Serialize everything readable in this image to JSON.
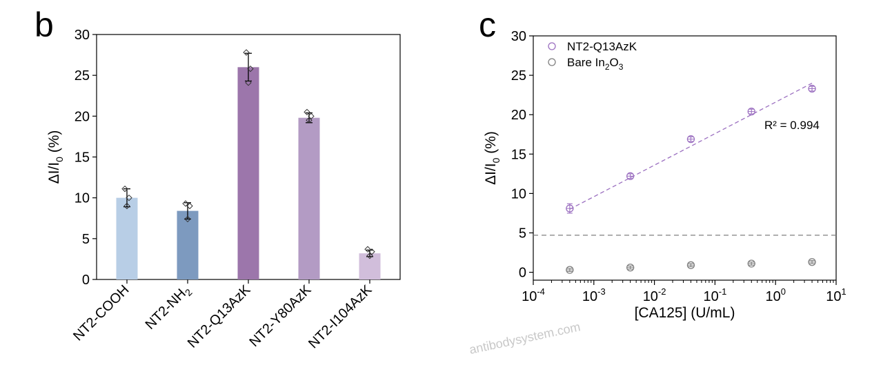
{
  "panel_b": {
    "letter": "b"
  },
  "panel_c": {
    "letter": "c"
  },
  "watermark": "antibodysystem.com",
  "chart_data": [
    {
      "type": "bar",
      "ylabel": "ΔI/I₀ (%)",
      "ylim": [
        0,
        30
      ],
      "yticks": [
        0,
        5,
        10,
        15,
        20,
        25,
        30
      ],
      "categories": [
        "NT2-COOH",
        "NT2-NH2",
        "NT2-Q13AzK",
        "NT2-Y80AzK",
        "NT2-I104AzK"
      ],
      "category_subscripts": [
        "",
        "2",
        "",
        "",
        ""
      ],
      "values": [
        10.0,
        8.4,
        26.0,
        19.8,
        3.2
      ],
      "errors": [
        1.1,
        1.0,
        1.7,
        0.6,
        0.4
      ],
      "replicate_points": [
        [
          11.1,
          10.0,
          9.0
        ],
        [
          9.3,
          9.0,
          7.4
        ],
        [
          27.8,
          25.8,
          24.1
        ],
        [
          20.5,
          20.0,
          19.5
        ],
        [
          3.7,
          3.4,
          2.9
        ]
      ],
      "colors": [
        "#b8cee6",
        "#7d9abf",
        "#9c76ab",
        "#b39bc4",
        "#d1bedb"
      ],
      "grid": false
    },
    {
      "type": "scatter",
      "xlabel": "[CA125] (U/mL)",
      "ylabel": "ΔI/I₀ (%)",
      "xscale": "log",
      "xlim": [
        0.0001,
        10
      ],
      "ylim": [
        -1,
        30
      ],
      "yticks": [
        0,
        5,
        10,
        15,
        20,
        25,
        30
      ],
      "xtick_exponents": [
        "-4",
        "-3",
        "-2",
        "-1",
        "0",
        "1"
      ],
      "legend_position": "top-left",
      "series": [
        {
          "name": "NT2-Q13AzK",
          "color": "#9b6fc0",
          "x": [
            0.0004,
            0.004,
            0.04,
            0.4,
            4
          ],
          "y": [
            8.1,
            12.2,
            16.9,
            20.4,
            23.3
          ],
          "errors": [
            0.6,
            0.3,
            0.3,
            0.3,
            0.3
          ]
        },
        {
          "name": "Bare In2O3",
          "name_parts": [
            "Bare In",
            "2",
            "O",
            "3"
          ],
          "color": "#7f7f7f",
          "x": [
            0.0004,
            0.004,
            0.04,
            0.4,
            4
          ],
          "y": [
            0.3,
            0.6,
            0.9,
            1.1,
            1.3
          ],
          "errors": [
            0.2,
            0.2,
            0.2,
            0.2,
            0.2
          ]
        }
      ],
      "fit_line": {
        "x": [
          0.0004,
          4
        ],
        "y": [
          8.0,
          24.0
        ],
        "color": "#9b6fc0",
        "style": "dashed"
      },
      "threshold_line": {
        "y": 4.7,
        "color": "#7f7f7f",
        "style": "dashed"
      },
      "annotation": "R² = 0.994",
      "grid": false
    }
  ]
}
